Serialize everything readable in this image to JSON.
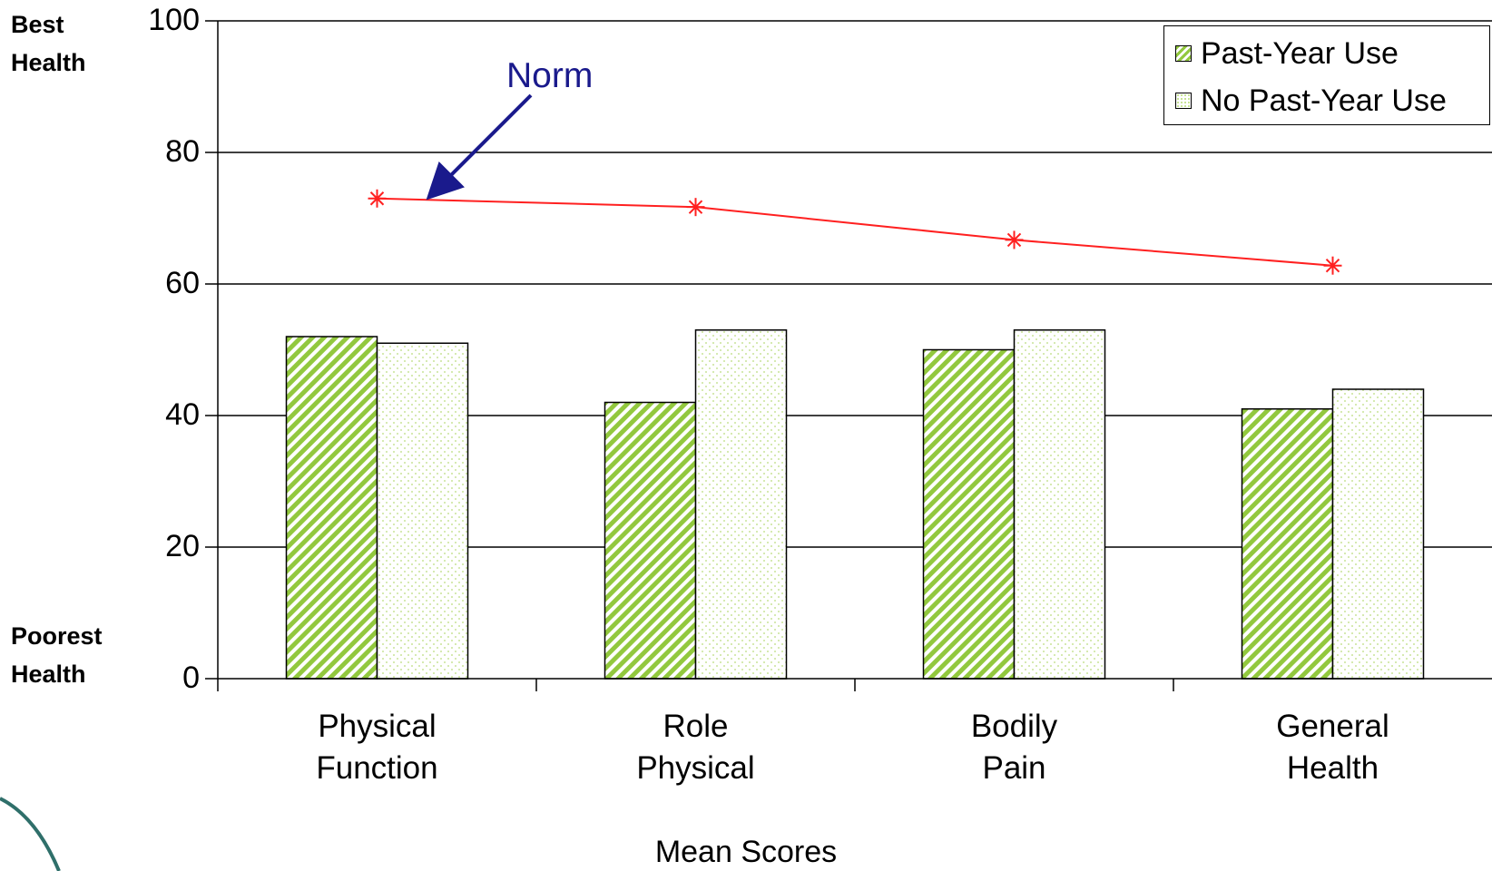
{
  "chart_data": {
    "type": "bar",
    "categories": [
      "Physical\nFunction",
      "Role\nPhysical",
      "Bodily\nPain",
      "General\nHealth"
    ],
    "series": [
      {
        "name": "Past-Year Use",
        "values": [
          52,
          42,
          50,
          41
        ],
        "fill": "hatched",
        "color": "#92c83e"
      },
      {
        "name": "No Past-Year Use",
        "values": [
          51,
          53,
          53,
          44
        ],
        "fill": "dotted",
        "color": "#b9dc7a"
      }
    ],
    "norm_line": {
      "values": [
        73,
        71.7,
        66.7,
        62.8
      ],
      "color": "#ff2020",
      "marker": "asterisk"
    },
    "annotation": "Norm",
    "annotation_color": "#1a1a8c",
    "ylim": [
      0,
      100
    ],
    "yticks": [
      "0",
      "20",
      "40",
      "60",
      "80",
      "100"
    ],
    "xlabel": "Mean Scores",
    "ylabel_top": [
      "Best",
      "Health"
    ],
    "ylabel_bottom": [
      "Poorest",
      "Health"
    ],
    "grid": true,
    "legend_position": "top-right"
  }
}
